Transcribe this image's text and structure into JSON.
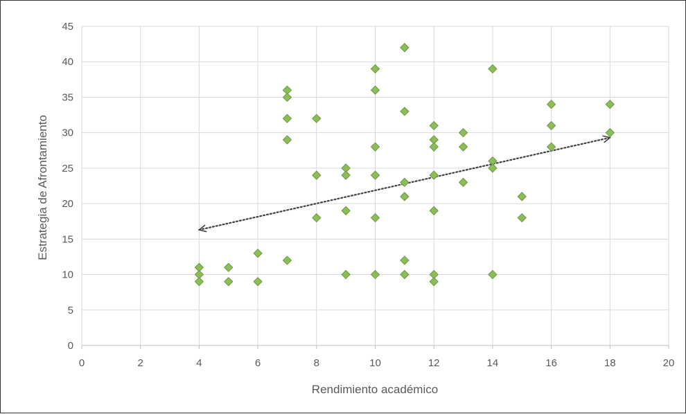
{
  "chart_data": {
    "type": "scatter",
    "title": "",
    "xlabel": "Rendimiento académico",
    "ylabel": "Estrategia de Afrontamiento",
    "xlim": [
      0,
      20
    ],
    "ylim": [
      0,
      45
    ],
    "xticks": [
      0,
      2,
      4,
      6,
      8,
      10,
      12,
      14,
      16,
      18,
      20
    ],
    "yticks": [
      0,
      5,
      10,
      15,
      20,
      25,
      30,
      35,
      40,
      45
    ],
    "grid": true,
    "legend": "none",
    "marker": "diamond",
    "colors": {
      "marker_fill": "#8cbd5a",
      "marker_stroke": "#6a9a3c",
      "grid": "#d9d9d9",
      "trend": "#404040"
    },
    "series": [
      {
        "points": [
          [
            4,
            11
          ],
          [
            4,
            10
          ],
          [
            4,
            9
          ],
          [
            5,
            11
          ],
          [
            5,
            9
          ],
          [
            6,
            13
          ],
          [
            6,
            9
          ],
          [
            7,
            36
          ],
          [
            7,
            35
          ],
          [
            7,
            32
          ],
          [
            7,
            29
          ],
          [
            7,
            12
          ],
          [
            8,
            32
          ],
          [
            8,
            24
          ],
          [
            8,
            18
          ],
          [
            9,
            25
          ],
          [
            9,
            24
          ],
          [
            9,
            19
          ],
          [
            9,
            10
          ],
          [
            10,
            39
          ],
          [
            10,
            36
          ],
          [
            10,
            28
          ],
          [
            10,
            24
          ],
          [
            10,
            18
          ],
          [
            10,
            10
          ],
          [
            11,
            42
          ],
          [
            11,
            33
          ],
          [
            11,
            23
          ],
          [
            11,
            21
          ],
          [
            11,
            12
          ],
          [
            11,
            10
          ],
          [
            12,
            31
          ],
          [
            12,
            29
          ],
          [
            12,
            28
          ],
          [
            12,
            24
          ],
          [
            12,
            19
          ],
          [
            12,
            10
          ],
          [
            12,
            9
          ],
          [
            13,
            30
          ],
          [
            13,
            28
          ],
          [
            13,
            23
          ],
          [
            14,
            39
          ],
          [
            14,
            26
          ],
          [
            14,
            25
          ],
          [
            14,
            10
          ],
          [
            15,
            21
          ],
          [
            15,
            18
          ],
          [
            16,
            34
          ],
          [
            16,
            31
          ],
          [
            16,
            28
          ],
          [
            18,
            34
          ],
          [
            18,
            30
          ]
        ]
      }
    ],
    "trendline": {
      "style": "dotted",
      "arrows": "both",
      "from": [
        4,
        16.3
      ],
      "to": [
        18,
        29.3
      ]
    }
  }
}
